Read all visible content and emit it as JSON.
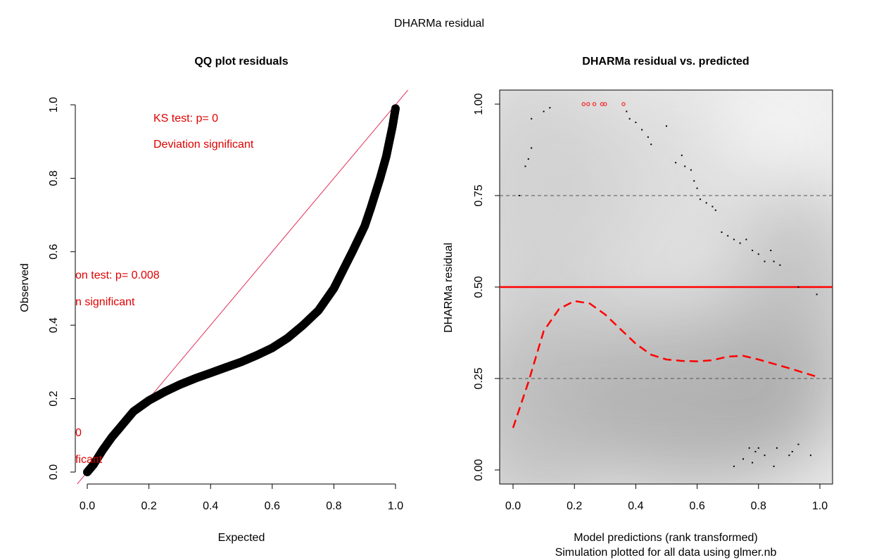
{
  "figure": {
    "suptitle": "DHARMa residual"
  },
  "chart_data": [
    {
      "type": "scatter",
      "title": "QQ plot residuals",
      "xlabel": "Expected",
      "ylabel": "Observed",
      "xlim": [
        0,
        1
      ],
      "ylim": [
        0,
        1
      ],
      "xticks": [
        "0.0",
        "0.2",
        "0.4",
        "0.6",
        "0.8",
        "1.0"
      ],
      "yticks": [
        "0.0",
        "0.2",
        "0.4",
        "0.6",
        "0.8",
        "1.0"
      ],
      "reference_line": {
        "slope": 1,
        "intercept": 0,
        "color": "#e0305a"
      },
      "series": [
        {
          "x": [
            0,
            0.02,
            0.05,
            0.08,
            0.1,
            0.13,
            0.15,
            0.2,
            0.25,
            0.3,
            0.35,
            0.4,
            0.45,
            0.5,
            0.55,
            0.6,
            0.65,
            0.7,
            0.75,
            0.8,
            0.83,
            0.86,
            0.9,
            0.92,
            0.95,
            0.97,
            0.98,
            0.99,
            1.0
          ],
          "y": [
            0,
            0.02,
            0.06,
            0.095,
            0.115,
            0.145,
            0.165,
            0.195,
            0.218,
            0.238,
            0.255,
            0.27,
            0.285,
            0.3,
            0.318,
            0.338,
            0.365,
            0.4,
            0.44,
            0.5,
            0.55,
            0.6,
            0.67,
            0.72,
            0.8,
            0.86,
            0.9,
            0.94,
            0.99
          ]
        }
      ],
      "annotations": [
        {
          "text": "KS test: p= 0",
          "color": "#e00000"
        },
        {
          "text": "Deviation  significant",
          "color": "#e00000"
        },
        {
          "text": "on test: p= 0.008",
          "color": "#e00000"
        },
        {
          "text": "n  significant",
          "color": "#e00000"
        },
        {
          "text": "0",
          "color": "#e00000"
        },
        {
          "text": "ficant",
          "color": "#e00000"
        }
      ]
    },
    {
      "type": "scatter",
      "title": "DHARMa residual vs. predicted",
      "xlabel": "Model predictions (rank transformed)",
      "xlabel2": "Simulation plotted for all data using glmer.nb",
      "ylabel": "DHARMa residual",
      "xlim": [
        0,
        1
      ],
      "ylim": [
        0,
        1
      ],
      "xticks": [
        "0.0",
        "0.2",
        "0.4",
        "0.6",
        "0.8",
        "1.0"
      ],
      "yticks": [
        "0.00",
        "0.25",
        "0.50",
        "0.75",
        "1.00"
      ],
      "reference_lines": [
        {
          "y": 0.25,
          "style": "dashed",
          "color": "#555555"
        },
        {
          "y": 0.5,
          "style": "solid",
          "color": "#ff0000"
        },
        {
          "y": 0.75,
          "style": "dashed",
          "color": "#555555"
        }
      ],
      "background": "density shading (grey)",
      "points": {
        "x": [
          0.02,
          0.04,
          0.05,
          0.06,
          0.06,
          0.1,
          0.12,
          0.37,
          0.38,
          0.4,
          0.42,
          0.44,
          0.45,
          0.5,
          0.53,
          0.55,
          0.56,
          0.58,
          0.59,
          0.6,
          0.61,
          0.63,
          0.65,
          0.66,
          0.68,
          0.7,
          0.72,
          0.74,
          0.76,
          0.78,
          0.8,
          0.82,
          0.84,
          0.85,
          0.87,
          0.93,
          0.99,
          0.72,
          0.75,
          0.77,
          0.78,
          0.79,
          0.8,
          0.82,
          0.85,
          0.86,
          0.9,
          0.91,
          0.93,
          0.97
        ],
        "y": [
          0.75,
          0.83,
          0.85,
          0.88,
          0.96,
          0.98,
          0.99,
          0.98,
          0.96,
          0.95,
          0.93,
          0.91,
          0.89,
          0.94,
          0.84,
          0.86,
          0.83,
          0.82,
          0.79,
          0.77,
          0.74,
          0.73,
          0.72,
          0.71,
          0.65,
          0.64,
          0.63,
          0.62,
          0.63,
          0.6,
          0.59,
          0.57,
          0.6,
          0.57,
          0.56,
          0.5,
          0.48,
          0.01,
          0.03,
          0.06,
          0.02,
          0.05,
          0.06,
          0.04,
          0.01,
          0.06,
          0.04,
          0.05,
          0.07,
          0.04
        ]
      },
      "outlier_points": {
        "x": [
          0.23,
          0.245,
          0.265,
          0.29,
          0.3,
          0.36
        ],
        "y": [
          1.0,
          1.0,
          1.0,
          1.0,
          1.0,
          1.0
        ]
      },
      "quantile_curve": {
        "quantile": 0.5,
        "x": [
          0.0,
          0.05,
          0.1,
          0.15,
          0.2,
          0.25,
          0.3,
          0.35,
          0.4,
          0.45,
          0.5,
          0.55,
          0.6,
          0.65,
          0.7,
          0.75,
          0.8,
          0.85,
          0.9,
          0.95,
          0.99
        ],
        "y": [
          0.115,
          0.24,
          0.38,
          0.44,
          0.462,
          0.455,
          0.425,
          0.385,
          0.345,
          0.315,
          0.302,
          0.298,
          0.297,
          0.3,
          0.31,
          0.312,
          0.302,
          0.29,
          0.278,
          0.265,
          0.255
        ]
      }
    }
  ]
}
